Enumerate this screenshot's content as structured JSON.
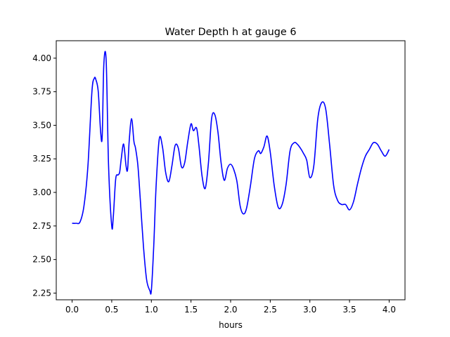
{
  "chart_data": {
    "type": "line",
    "title": "Water Depth h at gauge 6",
    "xlabel": "hours",
    "ylabel": "",
    "xlim": [
      -0.2,
      4.2
    ],
    "ylim": [
      2.2,
      4.13
    ],
    "x_ticks": [
      0.0,
      0.5,
      1.0,
      1.5,
      2.0,
      2.5,
      3.0,
      3.5,
      4.0
    ],
    "x_tick_labels": [
      "0.0",
      "0.5",
      "1.0",
      "1.5",
      "2.0",
      "2.5",
      "3.0",
      "3.5",
      "4.0"
    ],
    "y_ticks": [
      2.25,
      2.5,
      2.75,
      3.0,
      3.25,
      3.5,
      3.75,
      4.0
    ],
    "y_tick_labels": [
      "2.25",
      "2.50",
      "2.75",
      "3.00",
      "3.25",
      "3.50",
      "3.75",
      "4.00"
    ],
    "grid": false,
    "series": [
      {
        "color": "#0000ff",
        "x": [
          0.0,
          0.05,
          0.1,
          0.15,
          0.2,
          0.25,
          0.28,
          0.3,
          0.33,
          0.36,
          0.38,
          0.4,
          0.43,
          0.46,
          0.5,
          0.52,
          0.55,
          0.58,
          0.6,
          0.62,
          0.65,
          0.68,
          0.7,
          0.72,
          0.75,
          0.78,
          0.8,
          0.83,
          0.86,
          0.9,
          0.94,
          0.98,
          1.0,
          1.03,
          1.06,
          1.1,
          1.14,
          1.18,
          1.22,
          1.26,
          1.3,
          1.34,
          1.38,
          1.42,
          1.46,
          1.5,
          1.53,
          1.57,
          1.6,
          1.64,
          1.68,
          1.72,
          1.76,
          1.8,
          1.84,
          1.88,
          1.92,
          1.96,
          2.0,
          2.04,
          2.08,
          2.12,
          2.16,
          2.2,
          2.25,
          2.3,
          2.35,
          2.38,
          2.42,
          2.46,
          2.5,
          2.55,
          2.6,
          2.65,
          2.7,
          2.75,
          2.8,
          2.84,
          2.88,
          2.92,
          2.96,
          3.0,
          3.05,
          3.1,
          3.15,
          3.2,
          3.25,
          3.3,
          3.35,
          3.4,
          3.45,
          3.5,
          3.55,
          3.6,
          3.65,
          3.7,
          3.75,
          3.8,
          3.85,
          3.9,
          3.95,
          4.0
        ],
        "y": [
          2.77,
          2.77,
          2.78,
          2.9,
          3.2,
          3.75,
          3.85,
          3.84,
          3.75,
          3.45,
          3.42,
          3.95,
          3.98,
          3.2,
          2.75,
          2.82,
          3.1,
          3.13,
          3.15,
          3.25,
          3.36,
          3.2,
          3.17,
          3.38,
          3.55,
          3.38,
          3.33,
          3.2,
          2.95,
          2.6,
          2.35,
          2.27,
          2.27,
          2.6,
          3.05,
          3.4,
          3.34,
          3.15,
          3.08,
          3.2,
          3.35,
          3.33,
          3.19,
          3.22,
          3.38,
          3.51,
          3.46,
          3.48,
          3.35,
          3.12,
          3.03,
          3.22,
          3.55,
          3.58,
          3.45,
          3.22,
          3.09,
          3.18,
          3.21,
          3.17,
          3.08,
          2.9,
          2.84,
          2.88,
          3.05,
          3.25,
          3.31,
          3.29,
          3.34,
          3.42,
          3.3,
          3.05,
          2.89,
          2.91,
          3.06,
          3.31,
          3.37,
          3.36,
          3.33,
          3.29,
          3.24,
          3.11,
          3.2,
          3.55,
          3.67,
          3.62,
          3.35,
          3.05,
          2.94,
          2.91,
          2.91,
          2.87,
          2.93,
          3.06,
          3.18,
          3.27,
          3.32,
          3.37,
          3.36,
          3.31,
          3.27,
          3.32
        ]
      }
    ]
  }
}
